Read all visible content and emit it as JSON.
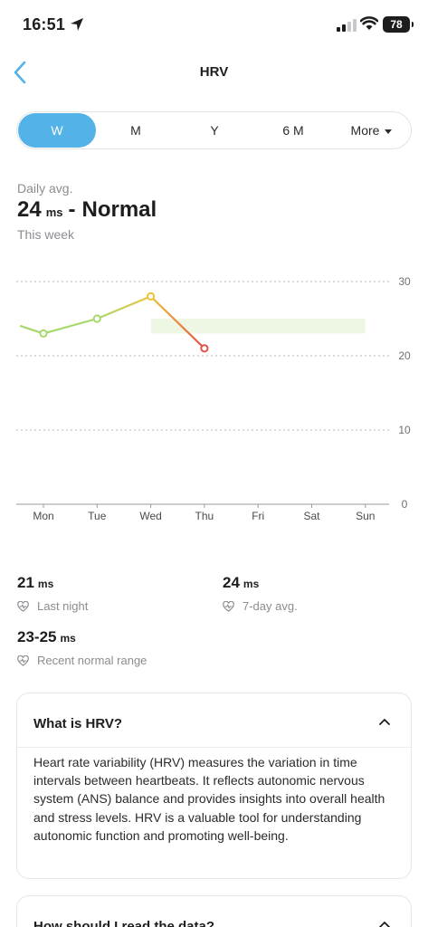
{
  "status_bar": {
    "time": "16:51",
    "battery": "78",
    "icons": [
      "location-arrow-icon",
      "cellular-signal-icon",
      "wifi-icon",
      "battery-icon"
    ]
  },
  "header": {
    "title": "HRV",
    "back_icon": "chevron-left-icon"
  },
  "tabs": [
    {
      "label": "W",
      "active": true
    },
    {
      "label": "M",
      "active": false
    },
    {
      "label": "Y",
      "active": false
    },
    {
      "label": "6 M",
      "active": false
    },
    {
      "label": "More",
      "active": false
    }
  ],
  "summary": {
    "label": "Daily avg.",
    "value": "24",
    "unit": "ms",
    "separator": "-",
    "status": "Normal",
    "period": "This week"
  },
  "chart_data": {
    "type": "line",
    "categories": [
      "Mon",
      "Tue",
      "Wed",
      "Thu",
      "Fri",
      "Sat",
      "Sun"
    ],
    "series": [
      {
        "values": [
          23,
          25,
          28,
          21,
          null,
          null,
          null
        ],
        "leading_value": 24
      }
    ],
    "normal_range": [
      23,
      25
    ],
    "ylim": [
      0,
      30
    ],
    "yticks": [
      0,
      10,
      20,
      30
    ],
    "y_axis_position": "right",
    "grid": "dotted horizontal",
    "colors": {
      "good": "#a7d86c",
      "mid": "#f0c23a",
      "low": "#e0514b",
      "range_band": "#eef7e4",
      "grid": "#c4c4c8"
    }
  },
  "stats": {
    "last_night": {
      "value": "21",
      "unit": "ms",
      "label": "Last night"
    },
    "seven_day": {
      "value": "24",
      "unit": "ms",
      "label": "7-day avg."
    },
    "normal_range": {
      "value": "23-25",
      "unit": "ms",
      "label": "Recent normal range"
    },
    "icon": "heart-pulse-icon"
  },
  "cards": [
    {
      "title": "What is HRV?",
      "expanded": true,
      "body": "Heart rate variability (HRV) measures the variation in time intervals between heartbeats. It reflects autonomic nervous system (ANS) balance and provides insights into overall health and stress levels. HRV is a valuable tool for understanding autonomic function and promoting well-being."
    },
    {
      "title": "How should I read the data?",
      "expanded": false
    }
  ],
  "accent_color": "#53b2e7"
}
